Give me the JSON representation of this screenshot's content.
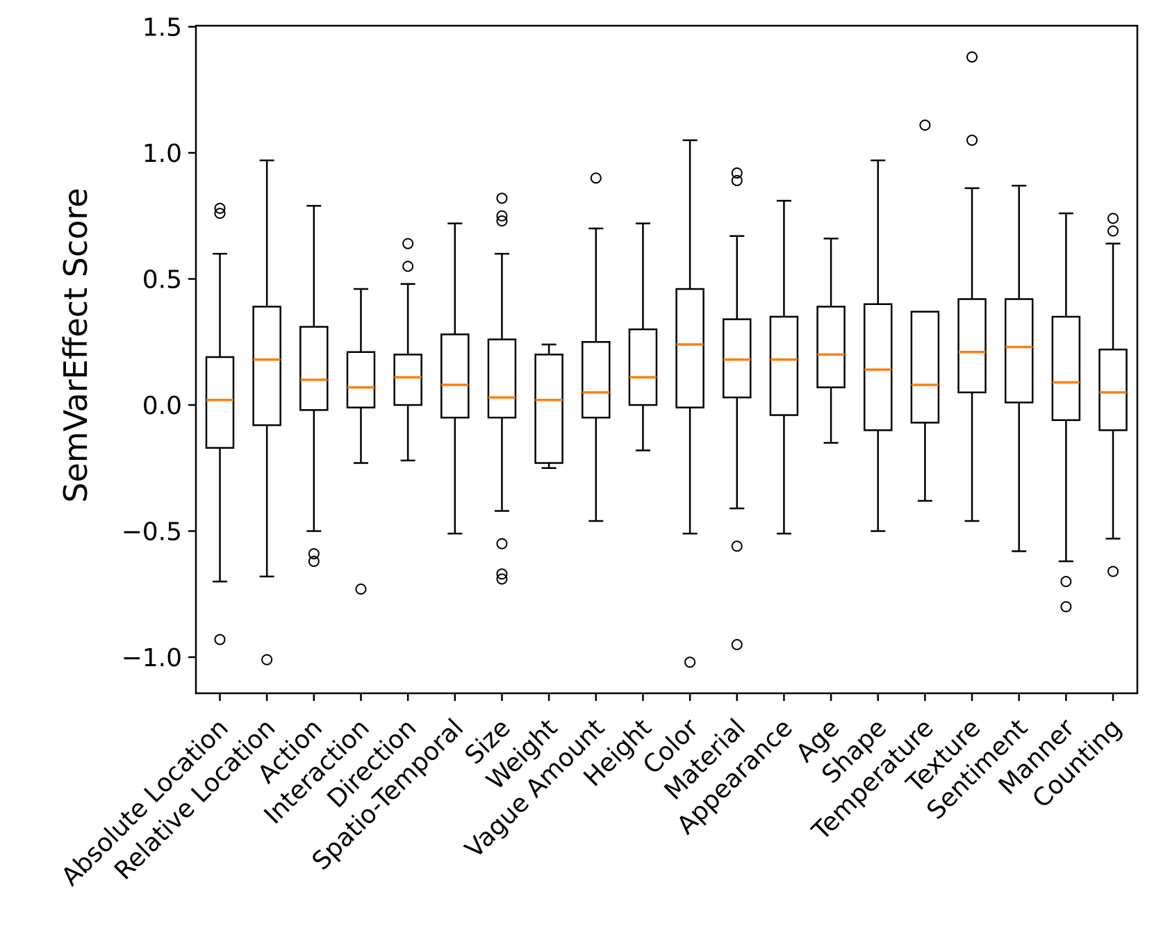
{
  "figure": {
    "background": "#ffffff"
  },
  "chart_data": {
    "type": "box",
    "title": "",
    "xlabel": "",
    "ylabel": "SemVarEffect Score",
    "ylim": [
      -1.15,
      1.5
    ],
    "grid": false,
    "legend": null,
    "y_ticks": {
      "labels": [
        "1.5",
        "1.0",
        "0.5",
        "0.0",
        "−0.5",
        "−1.0"
      ],
      "values": [
        1.5,
        1.0,
        0.5,
        0.0,
        -0.5,
        -1.0
      ]
    },
    "categories": [
      "Absolute Location",
      "Relative Location",
      "Action",
      "Interaction",
      "Direction",
      "Spatio-Temporal",
      "Size",
      "Weight",
      "Vague Amount",
      "Height",
      "Color",
      "Material",
      "Appearance",
      "Age",
      "Shape",
      "Temperature",
      "Texture",
      "Sentiment",
      "Manner",
      "Counting"
    ],
    "boxes": [
      {
        "label": "Absolute Location",
        "whisker_low": -0.7,
        "q1": -0.17,
        "median": 0.02,
        "q3": 0.19,
        "whisker_high": 0.6,
        "outliers": [
          0.78,
          0.76,
          -0.93
        ]
      },
      {
        "label": "Relative Location",
        "whisker_low": -0.68,
        "q1": -0.08,
        "median": 0.18,
        "q3": 0.39,
        "whisker_high": 0.97,
        "outliers": [
          -1.01
        ]
      },
      {
        "label": "Action",
        "whisker_low": -0.5,
        "q1": -0.02,
        "median": 0.1,
        "q3": 0.31,
        "whisker_high": 0.79,
        "outliers": [
          -0.59,
          -0.62
        ]
      },
      {
        "label": "Interaction",
        "whisker_low": -0.23,
        "q1": -0.01,
        "median": 0.07,
        "q3": 0.21,
        "whisker_high": 0.46,
        "outliers": [
          -0.73
        ]
      },
      {
        "label": "Direction",
        "whisker_low": -0.22,
        "q1": 0.0,
        "median": 0.11,
        "q3": 0.2,
        "whisker_high": 0.48,
        "outliers": [
          0.64,
          0.55
        ]
      },
      {
        "label": "Spatio-Temporal",
        "whisker_low": -0.51,
        "q1": -0.05,
        "median": 0.08,
        "q3": 0.28,
        "whisker_high": 0.72,
        "outliers": []
      },
      {
        "label": "Size",
        "whisker_low": -0.42,
        "q1": -0.05,
        "median": 0.03,
        "q3": 0.26,
        "whisker_high": 0.6,
        "outliers": [
          0.82,
          0.75,
          0.73,
          -0.55,
          -0.67,
          -0.69
        ]
      },
      {
        "label": "Weight",
        "whisker_low": -0.25,
        "q1": -0.23,
        "median": 0.02,
        "q3": 0.2,
        "whisker_high": 0.24,
        "outliers": []
      },
      {
        "label": "Vague Amount",
        "whisker_low": -0.46,
        "q1": -0.05,
        "median": 0.05,
        "q3": 0.25,
        "whisker_high": 0.7,
        "outliers": [
          0.9
        ]
      },
      {
        "label": "Height",
        "whisker_low": -0.18,
        "q1": 0.0,
        "median": 0.11,
        "q3": 0.3,
        "whisker_high": 0.72,
        "outliers": []
      },
      {
        "label": "Color",
        "whisker_low": -0.51,
        "q1": -0.01,
        "median": 0.24,
        "q3": 0.46,
        "whisker_high": 1.05,
        "outliers": [
          -1.02
        ]
      },
      {
        "label": "Material",
        "whisker_low": -0.41,
        "q1": 0.03,
        "median": 0.18,
        "q3": 0.34,
        "whisker_high": 0.67,
        "outliers": [
          0.92,
          0.89,
          -0.56,
          -0.95
        ]
      },
      {
        "label": "Appearance",
        "whisker_low": -0.51,
        "q1": -0.04,
        "median": 0.18,
        "q3": 0.35,
        "whisker_high": 0.81,
        "outliers": []
      },
      {
        "label": "Age",
        "whisker_low": -0.15,
        "q1": 0.07,
        "median": 0.2,
        "q3": 0.39,
        "whisker_high": 0.66,
        "outliers": []
      },
      {
        "label": "Shape",
        "whisker_low": -0.5,
        "q1": -0.1,
        "median": 0.14,
        "q3": 0.4,
        "whisker_high": 0.97,
        "outliers": []
      },
      {
        "label": "Temperature",
        "whisker_low": -0.38,
        "q1": -0.07,
        "median": 0.08,
        "q3": 0.37,
        "whisker_high": 0.37,
        "outliers": [
          1.11
        ]
      },
      {
        "label": "Texture",
        "whisker_low": -0.46,
        "q1": 0.05,
        "median": 0.21,
        "q3": 0.42,
        "whisker_high": 0.86,
        "outliers": [
          1.38,
          1.05
        ]
      },
      {
        "label": "Sentiment",
        "whisker_low": -0.58,
        "q1": 0.01,
        "median": 0.23,
        "q3": 0.42,
        "whisker_high": 0.87,
        "outliers": []
      },
      {
        "label": "Manner",
        "whisker_low": -0.62,
        "q1": -0.06,
        "median": 0.09,
        "q3": 0.35,
        "whisker_high": 0.76,
        "outliers": [
          -0.7,
          -0.8
        ]
      },
      {
        "label": "Counting",
        "whisker_low": -0.53,
        "q1": -0.1,
        "median": 0.05,
        "q3": 0.22,
        "whisker_high": 0.64,
        "outliers": [
          0.74,
          0.69,
          -0.66
        ]
      }
    ],
    "colors": {
      "median_line": "#ff7f0e",
      "box_line": "#000000",
      "background": "#ffffff"
    }
  }
}
